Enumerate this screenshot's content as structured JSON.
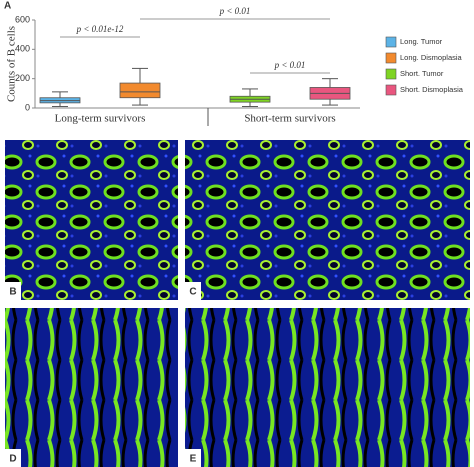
{
  "chart_data": {
    "type": "box",
    "panel_label": "A",
    "ylabel": "Counts of B cells",
    "ylim": [
      0,
      600
    ],
    "yticks": [
      0,
      200,
      400,
      600
    ],
    "groups": [
      "Long-term survivors",
      "Short-term survivors"
    ],
    "annotations": [
      "p < 0.01e-12",
      "p < 0.01",
      "p < 0.01"
    ],
    "series": [
      {
        "name": "Long. Tumor",
        "color": "#5cb3e6",
        "min": 10,
        "q1": 35,
        "median": 50,
        "q3": 70,
        "max": 110
      },
      {
        "name": "Long. Dismoplasia",
        "color": "#f28a2e",
        "min": 20,
        "q1": 70,
        "median": 110,
        "q3": 170,
        "max": 270
      },
      {
        "name": "Short. Tumor",
        "color": "#7fd424",
        "min": 10,
        "q1": 40,
        "median": 60,
        "q3": 80,
        "max": 130
      },
      {
        "name": "Short. Dismoplasia",
        "color": "#e9567f",
        "min": 20,
        "q1": 60,
        "median": 100,
        "q3": 140,
        "max": 200
      }
    ]
  },
  "panels": [
    "B",
    "C",
    "D",
    "E"
  ]
}
